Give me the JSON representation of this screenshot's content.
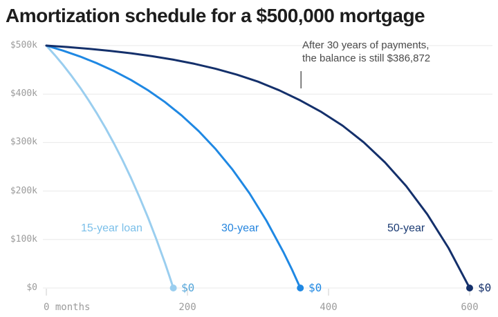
{
  "title": "Amortization schedule for a $500,000 mortgage",
  "annotation": {
    "line1": "After 30 years of payments,",
    "line2": "the balance is still $386,872",
    "pointer_month": 361
  },
  "colors": {
    "background": "#ffffff",
    "title_text": "#1d1d1d",
    "annotation_text": "#4a4a4a",
    "pointer_line": "#5a5a5a",
    "grid": "#e8e8e8",
    "axis_tick_mark": "#cccccc",
    "axis_label_text": "#9b9b9b"
  },
  "chart_data": {
    "type": "line",
    "title": "Amortization schedule for a $500,000 mortgage",
    "xlabel": "months",
    "ylabel": "loan balance ($)",
    "xlim": [
      0,
      600
    ],
    "ylim": [
      0,
      500000
    ],
    "grid": "horizontal-only",
    "legend_position": "inline-labels",
    "x_ticks": [
      {
        "value": 0,
        "label": "0 months"
      },
      {
        "value": 200,
        "label": "200"
      },
      {
        "value": 400,
        "label": "400"
      },
      {
        "value": 600,
        "label": "600"
      }
    ],
    "y_ticks": [
      {
        "value": 0,
        "label": "$0"
      },
      {
        "value": 100000,
        "label": "$100k"
      },
      {
        "value": 200000,
        "label": "$200k"
      },
      {
        "value": 300000,
        "label": "$300k"
      },
      {
        "value": 400000,
        "label": "$400k"
      },
      {
        "value": 500000,
        "label": "$500k"
      }
    ],
    "series": [
      {
        "id": "loan-15",
        "name": "15-year loan",
        "end_label": "$0",
        "color": "#9aceef",
        "label_color": "#7abfe9",
        "end_label_color": "#55a6da",
        "points": [
          [
            0,
            500000
          ],
          [
            12,
            480451
          ],
          [
            24,
            459486
          ],
          [
            36,
            437008
          ],
          [
            48,
            412905
          ],
          [
            60,
            387059
          ],
          [
            72,
            359346
          ],
          [
            84,
            329629
          ],
          [
            96,
            297764
          ],
          [
            108,
            263595
          ],
          [
            120,
            226953
          ],
          [
            132,
            187663
          ],
          [
            144,
            145539
          ],
          [
            156,
            100364
          ],
          [
            168,
            51930
          ],
          [
            174,
            26394
          ],
          [
            180,
            0
          ]
        ]
      },
      {
        "id": "loan-30",
        "name": "30-year",
        "end_label": "$0",
        "color": "#1f88e3",
        "label_color": "#2585de",
        "end_label_color": "#1f88e3",
        "points": [
          [
            0,
            500000
          ],
          [
            24,
            489474
          ],
          [
            48,
            477373
          ],
          [
            72,
            463456
          ],
          [
            96,
            447456
          ],
          [
            120,
            429060
          ],
          [
            144,
            407908
          ],
          [
            168,
            383588
          ],
          [
            192,
            355627
          ],
          [
            216,
            323475
          ],
          [
            240,
            286509
          ],
          [
            264,
            243989
          ],
          [
            288,
            195112
          ],
          [
            312,
            138911
          ],
          [
            336,
            74277
          ],
          [
            348,
            38469
          ],
          [
            360,
            0
          ]
        ]
      },
      {
        "id": "loan-50",
        "name": "50-year",
        "end_label": "$0",
        "color": "#14306b",
        "label_color": "#1a3a72",
        "end_label_color": "#14306b",
        "points": [
          [
            0,
            500000
          ],
          [
            30,
            496996
          ],
          [
            60,
            493431
          ],
          [
            90,
            489180
          ],
          [
            120,
            484119
          ],
          [
            150,
            478090
          ],
          [
            180,
            470916
          ],
          [
            210,
            462373
          ],
          [
            240,
            452199
          ],
          [
            270,
            440090
          ],
          [
            300,
            425664
          ],
          [
            330,
            407800
          ],
          [
            360,
            386872
          ],
          [
            390,
            362900
          ],
          [
            420,
            334749
          ],
          [
            450,
            300261
          ],
          [
            480,
            259178
          ],
          [
            510,
            210258
          ],
          [
            540,
            152050
          ],
          [
            570,
            82672
          ],
          [
            600,
            0
          ]
        ]
      }
    ]
  }
}
